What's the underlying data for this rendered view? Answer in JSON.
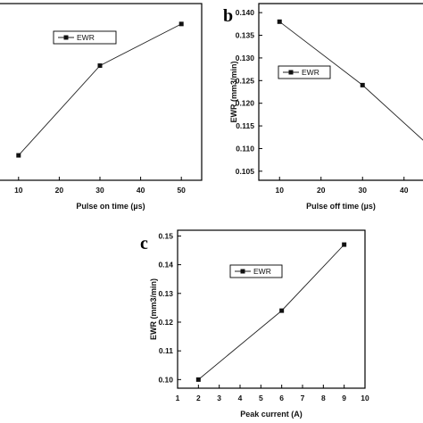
{
  "chart_data": [
    {
      "type": "line",
      "panel_letter": "",
      "xlabel": "Pulse on time (µs)",
      "ylabel": "",
      "xlim": [
        5,
        55
      ],
      "ylim": [
        0.103,
        0.142
      ],
      "xticks": [
        "10",
        "20",
        "30",
        "40",
        "50"
      ],
      "yticks": [],
      "legend_position": "top-center",
      "series": [
        {
          "name": "EWR",
          "x": [
            10,
            30,
            50
          ],
          "y": [
            0.1085,
            0.1283,
            0.1375
          ]
        }
      ]
    },
    {
      "type": "line",
      "panel_letter": "b",
      "xlabel": "Pulse off time (µs)",
      "ylabel": "EWR (mm3/min)",
      "xlim": [
        5,
        45
      ],
      "ylim": [
        0.103,
        0.142
      ],
      "xticks": [
        "10",
        "20",
        "30",
        "40"
      ],
      "yticks": [
        "0.105",
        "0.110",
        "0.115",
        "0.120",
        "0.125",
        "0.130",
        "0.135",
        "0.140"
      ],
      "legend_position": "top-center",
      "series": [
        {
          "name": "EWR",
          "x": [
            10,
            30,
            45
          ],
          "y": [
            0.138,
            0.124,
            0.1115
          ]
        }
      ]
    },
    {
      "type": "line",
      "panel_letter": "c",
      "xlabel": "Peak current (A)",
      "ylabel": "EWR (mm3/min)",
      "xlim": [
        1,
        10
      ],
      "ylim": [
        0.097,
        0.152
      ],
      "xticks": [
        "1",
        "2",
        "3",
        "4",
        "5",
        "6",
        "7",
        "8",
        "9",
        "10"
      ],
      "yticks": [
        "0.10",
        "0.11",
        "0.12",
        "0.13",
        "0.14",
        "0.15"
      ],
      "legend_position": "top-left",
      "series": [
        {
          "name": "EWR",
          "x": [
            2,
            6,
            9
          ],
          "y": [
            0.1,
            0.124,
            0.147
          ]
        }
      ]
    }
  ]
}
